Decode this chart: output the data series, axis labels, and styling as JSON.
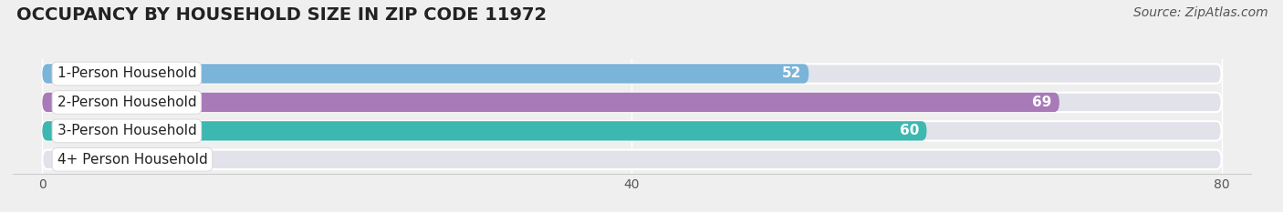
{
  "title": "OCCUPANCY BY HOUSEHOLD SIZE IN ZIP CODE 11972",
  "source": "Source: ZipAtlas.com",
  "categories": [
    "1-Person Household",
    "2-Person Household",
    "3-Person Household",
    "4+ Person Household"
  ],
  "values": [
    52,
    69,
    60,
    0
  ],
  "bar_colors": [
    "#7ab4d8",
    "#a87ab8",
    "#3db8b0",
    "#b0b0e0"
  ],
  "xlim_min": -2,
  "xlim_max": 82,
  "data_min": 0,
  "data_max": 80,
  "xticks": [
    0,
    40,
    80
  ],
  "background_color": "#efefef",
  "bar_bg_color": "#e2e2ea",
  "bar_height": 0.68,
  "title_fontsize": 14,
  "source_fontsize": 10,
  "label_fontsize": 11,
  "value_fontsize": 11
}
